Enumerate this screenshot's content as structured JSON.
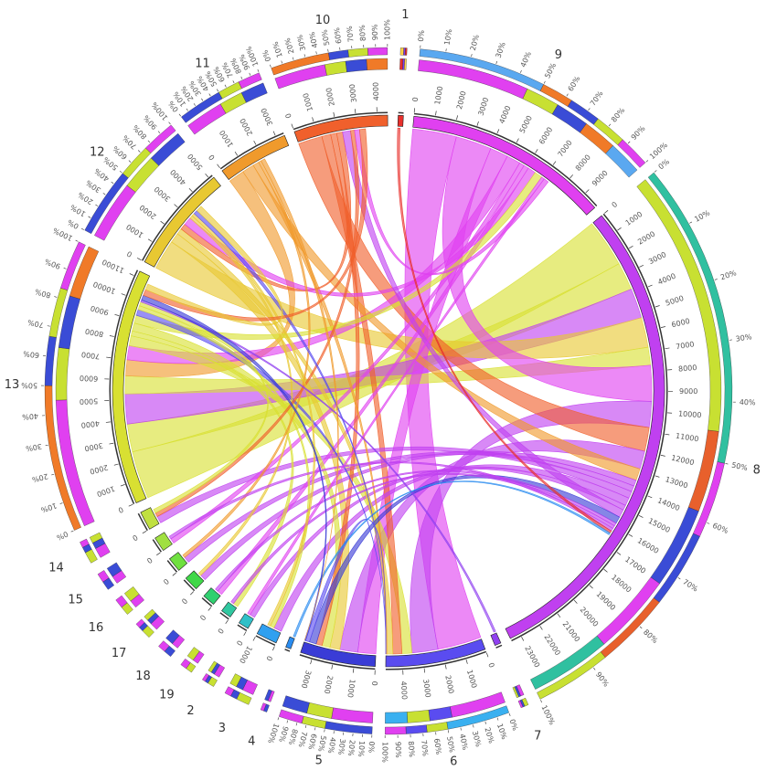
{
  "title": "",
  "chart_data": {
    "type": "chord",
    "title": "",
    "segments": [
      {
        "label": "1",
        "size": 250,
        "color": "#e8302c",
        "ticks": [],
        "bar_colors": [
          "#e8302c",
          "#7a3cf0",
          "#ffd24a"
        ]
      },
      {
        "label": "9",
        "size": 9800,
        "color": "#e040f0",
        "ticks": [
          "0",
          "1000",
          "2000",
          "3000",
          "4000",
          "5000",
          "6000",
          "7000",
          "8000",
          "9000"
        ],
        "bar_colors": [
          "#e040f0",
          "#c8e032",
          "#3a4cd6",
          "#f07a28",
          "#5aa8f0"
        ]
      },
      {
        "label": "8",
        "size": 23500,
        "color": "#c040f0",
        "ticks": [
          "0",
          "1000",
          "2000",
          "3000",
          "4000",
          "5000",
          "6000",
          "7000",
          "8000",
          "9000",
          "10000",
          "11000",
          "12000",
          "13000",
          "14000",
          "15000",
          "16000",
          "17000",
          "18000",
          "19000",
          "20000",
          "21000",
          "22000",
          "23000"
        ],
        "bar_colors": [
          "#c8e032",
          "#e8602c",
          "#3a4cd6",
          "#e040f0",
          "#30c0a0"
        ]
      },
      {
        "label": "7",
        "size": 300,
        "color": "#9040f0",
        "ticks": [],
        "bar_colors": [
          "#e040f0",
          "#3a4cd6",
          "#c8e032"
        ]
      },
      {
        "label": "6",
        "size": 4800,
        "color": "#5a4cf0",
        "ticks": [
          "0",
          "1000",
          "2000",
          "3000",
          "4000"
        ],
        "bar_colors": [
          "#e040f0",
          "#5a4cf0",
          "#c8e032",
          "#3ab0f0"
        ]
      },
      {
        "label": "5",
        "size": 3600,
        "color": "#3a3cd6",
        "ticks": [
          "0",
          "1000",
          "2000",
          "3000"
        ],
        "bar_colors": [
          "#e040f0",
          "#c8e032",
          "#3a4cd6"
        ]
      },
      {
        "label": "4",
        "size": 250,
        "color": "#2a8cf0",
        "ticks": [],
        "bar_colors": [
          "#e040f0",
          "#3a4cd6"
        ]
      },
      {
        "label": "3",
        "size": 1000,
        "color": "#30a0f0",
        "ticks": [
          "0",
          "1000"
        ],
        "bar_colors": [
          "#e040f0",
          "#3a4cd6",
          "#c8e032"
        ]
      },
      {
        "label": "2",
        "size": 500,
        "color": "#30c0c8",
        "ticks": [
          "0"
        ],
        "bar_colors": [
          "#e040f0",
          "#3a4cd6",
          "#c8e032"
        ]
      },
      {
        "label": "19",
        "size": 500,
        "color": "#30c8a0",
        "ticks": [
          "0"
        ],
        "bar_colors": [
          "#e040f0",
          "#c8e032"
        ]
      },
      {
        "label": "18",
        "size": 600,
        "color": "#30d070",
        "ticks": [
          "0"
        ],
        "bar_colors": [
          "#e040f0",
          "#3a4cd6"
        ]
      },
      {
        "label": "17",
        "size": 700,
        "color": "#40d848",
        "ticks": [
          "0"
        ],
        "bar_colors": [
          "#e040f0",
          "#3a4cd6",
          "#c8e032"
        ]
      },
      {
        "label": "16",
        "size": 700,
        "color": "#70e040",
        "ticks": [
          "0"
        ],
        "bar_colors": [
          "#e040f0",
          "#c8e032"
        ]
      },
      {
        "label": "15",
        "size": 700,
        "color": "#a0e040",
        "ticks": [
          "0"
        ],
        "bar_colors": [
          "#e040f0",
          "#3a4cd6"
        ]
      },
      {
        "label": "14",
        "size": 900,
        "color": "#c0e040",
        "ticks": [
          "0"
        ],
        "bar_colors": [
          "#e040f0",
          "#3a4cd6",
          "#c8e032"
        ]
      },
      {
        "label": "13",
        "size": 11300,
        "color": "#d8e032",
        "ticks": [
          "0",
          "1000",
          "2000",
          "3000",
          "4000",
          "5000",
          "6000",
          "7000",
          "8000",
          "9000",
          "10000",
          "11000"
        ],
        "bar_colors": [
          "#e040f0",
          "#c8e032",
          "#3a4cd6",
          "#f07a28"
        ]
      },
      {
        "label": "12",
        "size": 5200,
        "color": "#e8c832",
        "ticks": [
          "0",
          "1000",
          "2000",
          "3000",
          "4000",
          "5000"
        ],
        "bar_colors": [
          "#e040f0",
          "#c8e032",
          "#3a4cd6"
        ]
      },
      {
        "label": "11",
        "size": 3400,
        "color": "#f09a2c",
        "ticks": [
          "0",
          "1000",
          "2000",
          "3000"
        ],
        "bar_colors": [
          "#e040f0",
          "#c8e032",
          "#3a4cd6"
        ]
      },
      {
        "label": "10",
        "size": 4500,
        "color": "#f0602c",
        "ticks": [
          "0",
          "1000",
          "2000",
          "3000",
          "4000"
        ],
        "bar_colors": [
          "#e040f0",
          "#c8e032",
          "#3a4cd6",
          "#f07a28"
        ]
      }
    ],
    "percent_ticks": [
      "0%",
      "10%",
      "20%",
      "30%",
      "40%",
      "50%",
      "60%",
      "70%",
      "80%",
      "90%",
      "100%"
    ],
    "links": [
      {
        "from": "13",
        "to": "8",
        "value": 2400
      },
      {
        "from": "9",
        "to": "6",
        "value": 2200
      },
      {
        "from": "13",
        "to": "8",
        "value": 1400
      },
      {
        "from": "8",
        "to": "13",
        "value": 1500
      },
      {
        "from": "12",
        "to": "8",
        "value": 1500
      },
      {
        "from": "13",
        "to": "8",
        "value": 900
      },
      {
        "from": "9",
        "to": "8",
        "value": 1800
      },
      {
        "from": "8",
        "to": "6",
        "value": 1300
      },
      {
        "from": "10",
        "to": "8",
        "value": 1200
      },
      {
        "from": "9",
        "to": "5",
        "value": 900
      },
      {
        "from": "11",
        "to": "13",
        "value": 800
      },
      {
        "from": "9",
        "to": "13",
        "value": 700
      },
      {
        "from": "8",
        "to": "5",
        "value": 900
      },
      {
        "from": "13",
        "to": "6",
        "value": 500
      },
      {
        "from": "12",
        "to": "5",
        "value": 500
      },
      {
        "from": "10",
        "to": "6",
        "value": 450
      },
      {
        "from": "11",
        "to": "8",
        "value": 600
      },
      {
        "from": "8",
        "to": "17",
        "value": 300
      },
      {
        "from": "8",
        "to": "16",
        "value": 300
      },
      {
        "from": "8",
        "to": "14",
        "value": 350
      },
      {
        "from": "8",
        "to": "3",
        "value": 400
      },
      {
        "from": "8",
        "to": "2",
        "value": 250
      },
      {
        "from": "9",
        "to": "15",
        "value": 250
      },
      {
        "from": "9",
        "to": "18",
        "value": 250
      },
      {
        "from": "13",
        "to": "19",
        "value": 250
      },
      {
        "from": "13",
        "to": "5",
        "value": 400
      },
      {
        "from": "12",
        "to": "6",
        "value": 300
      },
      {
        "from": "10",
        "to": "5",
        "value": 300
      },
      {
        "from": "11",
        "to": "6",
        "value": 300
      },
      {
        "from": "10",
        "to": "12",
        "value": 300
      },
      {
        "from": "9",
        "to": "12",
        "value": 400
      },
      {
        "from": "13",
        "to": "9",
        "value": 400
      },
      {
        "from": "8",
        "to": "10",
        "value": 400
      },
      {
        "from": "5",
        "to": "8",
        "value": 350
      },
      {
        "from": "6",
        "to": "13",
        "value": 300
      },
      {
        "from": "13",
        "to": "3",
        "value": 200
      },
      {
        "from": "12",
        "to": "17",
        "value": 150
      },
      {
        "from": "11",
        "to": "16",
        "value": 150
      },
      {
        "from": "10",
        "to": "14",
        "value": 200
      },
      {
        "from": "9",
        "to": "2",
        "value": 150
      },
      {
        "from": "8",
        "to": "18",
        "value": 150
      },
      {
        "from": "8",
        "to": "19",
        "value": 150
      },
      {
        "from": "8",
        "to": "15",
        "value": 150
      },
      {
        "from": "13",
        "to": "14",
        "value": 200
      },
      {
        "from": "12",
        "to": "3",
        "value": 150
      },
      {
        "from": "6",
        "to": "5",
        "value": 200
      },
      {
        "from": "9",
        "to": "10",
        "value": 250
      },
      {
        "from": "1",
        "to": "8",
        "value": 120
      },
      {
        "from": "7",
        "to": "13",
        "value": 100
      },
      {
        "from": "4",
        "to": "8",
        "value": 100
      },
      {
        "from": "5",
        "to": "13",
        "value": 250
      },
      {
        "from": "6",
        "to": "12",
        "value": 200
      },
      {
        "from": "11",
        "to": "5",
        "value": 200
      },
      {
        "from": "10",
        "to": "13",
        "value": 300
      },
      {
        "from": "12",
        "to": "13",
        "value": 300
      }
    ]
  }
}
